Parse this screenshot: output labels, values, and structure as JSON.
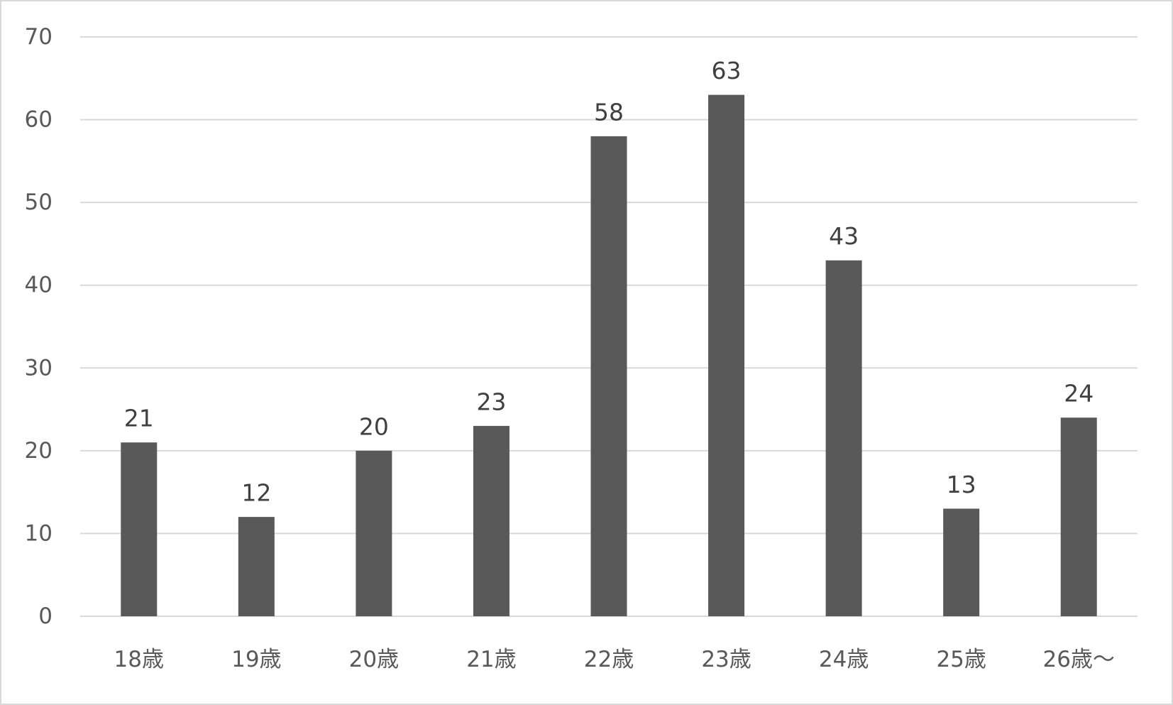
{
  "chart_data": {
    "type": "bar",
    "categories": [
      "18歳",
      "19歳",
      "20歳",
      "21歳",
      "22歳",
      "23歳",
      "24歳",
      "25歳",
      "26歳～"
    ],
    "values": [
      21,
      12,
      20,
      23,
      58,
      63,
      43,
      13,
      24
    ],
    "title": "",
    "xlabel": "",
    "ylabel": "",
    "ylim": [
      0,
      70
    ],
    "yticks": [
      0,
      10,
      20,
      30,
      40,
      50,
      60,
      70
    ],
    "grid": true,
    "legend": "none",
    "data_labels": true,
    "colors": {
      "bar": "#595959",
      "grid": "#d9d9d9",
      "tick_text": "#595959",
      "data_label_text": "#404040",
      "frame": "#d9d9d9",
      "background": "#ffffff"
    }
  }
}
